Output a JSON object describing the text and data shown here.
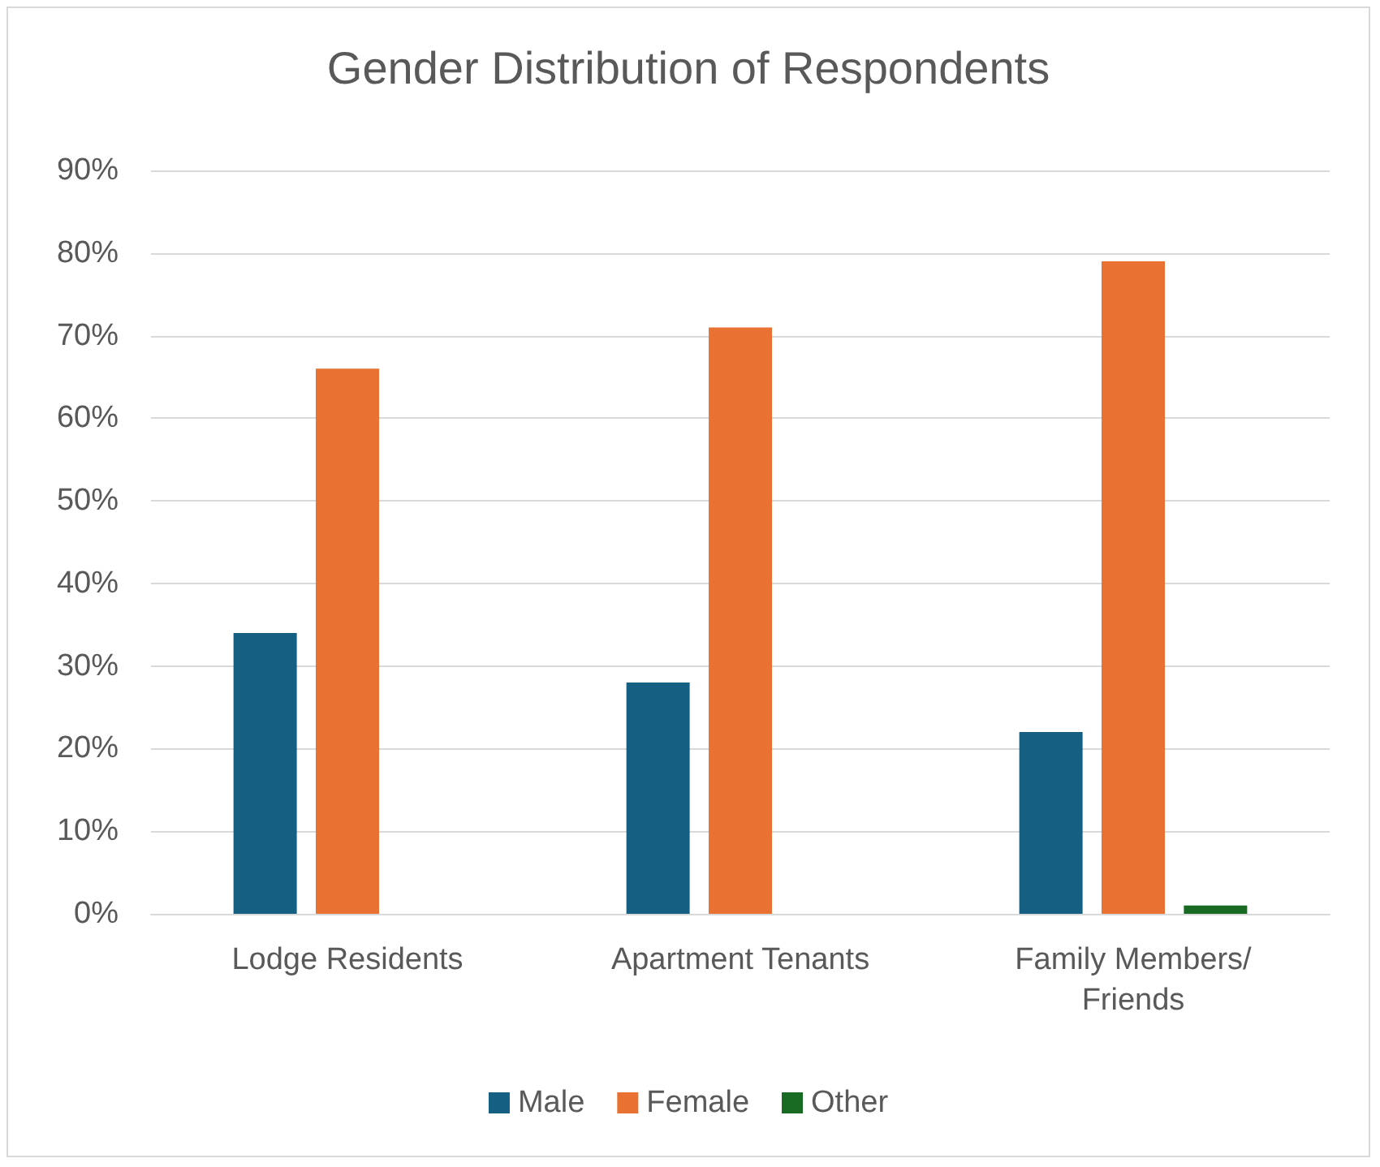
{
  "chart_data": {
    "type": "bar",
    "title": "Gender Distribution of Respondents",
    "categories": [
      "Lodge Residents",
      "Apartment Tenants",
      "Family Members/Friends"
    ],
    "series": [
      {
        "name": "Male",
        "color": "#156082",
        "values": [
          34,
          28,
          22
        ]
      },
      {
        "name": "Female",
        "color": "#e97132",
        "values": [
          66,
          71,
          79
        ]
      },
      {
        "name": "Other",
        "color": "#196b24",
        "values": [
          0,
          0,
          1
        ]
      }
    ],
    "ylim": [
      0,
      90
    ],
    "yticks": [
      {
        "value": 0,
        "label": "0%"
      },
      {
        "value": 10,
        "label": "10%"
      },
      {
        "value": 20,
        "label": "20%"
      },
      {
        "value": 30,
        "label": "30%"
      },
      {
        "value": 40,
        "label": "40%"
      },
      {
        "value": 50,
        "label": "50%"
      },
      {
        "value": 60,
        "label": "60%"
      },
      {
        "value": 70,
        "label": "70%"
      },
      {
        "value": 80,
        "label": "80%"
      },
      {
        "value": 90,
        "label": "90%"
      }
    ],
    "grid": "y",
    "legend": "bottom"
  }
}
